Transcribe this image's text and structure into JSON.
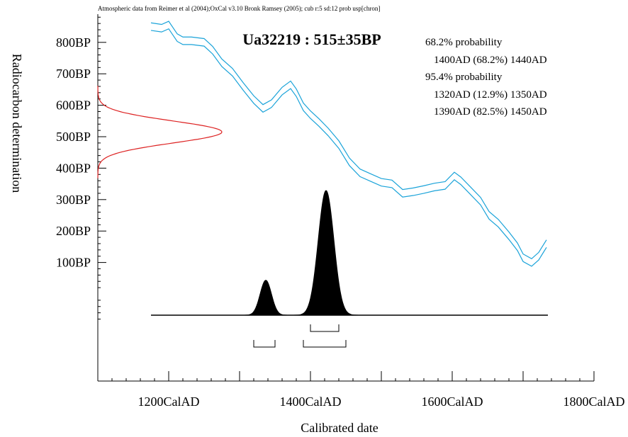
{
  "chart_data": {
    "type": "line",
    "source_note": "Atmospheric data from Reimer et al (2004);OxCal v3.10 Bronk Ramsey (2005); cub r:5 sd:12 prob usp[chron]",
    "title": "Ua32219 : 515±35BP",
    "xlabel": "Calibrated date",
    "ylabel": "Radiocarbon determination",
    "xlim": [
      1100,
      1800
    ],
    "ylim": [
      -80,
      900
    ],
    "x_ticks": [
      1200,
      1300,
      1400,
      1500,
      1600,
      1700,
      1800
    ],
    "x_tick_labels": [
      {
        "value": 1200,
        "label": "1200CalAD"
      },
      {
        "value": 1400,
        "label": "1400CalAD"
      },
      {
        "value": 1600,
        "label": "1600CalAD"
      },
      {
        "value": 1800,
        "label": "1800CalAD"
      }
    ],
    "y_ticks": [
      100,
      200,
      300,
      400,
      500,
      600,
      700,
      800
    ],
    "y_tick_labels": [
      {
        "value": 100,
        "label": "100BP"
      },
      {
        "value": 200,
        "label": "200BP"
      },
      {
        "value": 300,
        "label": "300BP"
      },
      {
        "value": 400,
        "label": "400BP"
      },
      {
        "value": 500,
        "label": "500BP"
      },
      {
        "value": 600,
        "label": "600BP"
      },
      {
        "value": 700,
        "label": "700BP"
      },
      {
        "value": 800,
        "label": "800BP"
      }
    ],
    "colors": {
      "calibration_curve": "#1aa3d9",
      "measurement_curve": "#dd2222",
      "posterior": "#000000"
    },
    "calibration_curve": {
      "x": [
        1175,
        1190,
        1200,
        1212,
        1220,
        1232,
        1250,
        1262,
        1275,
        1290,
        1305,
        1320,
        1333,
        1345,
        1360,
        1372,
        1380,
        1390,
        1400,
        1412,
        1425,
        1440,
        1455,
        1470,
        1485,
        1500,
        1515,
        1530,
        1545,
        1560,
        1575,
        1590,
        1603,
        1612,
        1625,
        1640,
        1652,
        1665,
        1680,
        1692,
        1700,
        1712,
        1722,
        1733
      ],
      "y": [
        850,
        845,
        855,
        815,
        805,
        805,
        800,
        775,
        735,
        705,
        660,
        618,
        590,
        605,
        645,
        665,
        640,
        595,
        570,
        545,
        515,
        475,
        420,
        385,
        370,
        355,
        350,
        320,
        325,
        332,
        340,
        345,
        375,
        360,
        330,
        295,
        250,
        225,
        185,
        150,
        115,
        100,
        120,
        160
      ],
      "half_width": 12
    },
    "measurement": {
      "mean": 515,
      "sd": 35
    },
    "probability_text": {
      "sigma1_title": "68.2% probability",
      "sigma1_ranges": [
        "1400AD (68.2%) 1440AD"
      ],
      "sigma2_title": "95.4% probability",
      "sigma2_ranges": [
        "1320AD (12.9%) 1350AD",
        "1390AD (82.5%) 1450AD"
      ]
    },
    "posterior_peaks": [
      {
        "center": 1337,
        "sd": 8,
        "relative_height": 0.28
      },
      {
        "center": 1422,
        "sd": 11,
        "relative_height": 1.0
      }
    ],
    "distribution_range": [
      1175,
      1735
    ],
    "ranges_68": [
      [
        1400,
        1440
      ]
    ],
    "ranges_95": [
      [
        1320,
        1350
      ],
      [
        1390,
        1450
      ]
    ]
  }
}
